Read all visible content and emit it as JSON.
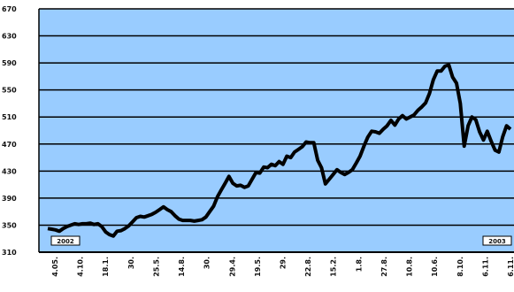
{
  "chart_data": {
    "type": "line",
    "title": "",
    "xlabel": "",
    "ylabel": "",
    "ylim": [
      310,
      670
    ],
    "yticks": [
      310,
      350,
      390,
      430,
      470,
      510,
      550,
      590,
      630,
      670
    ],
    "ytick_labels": [
      "310",
      "350",
      "390",
      "430",
      "470",
      "510",
      "550",
      "590",
      "630",
      "670"
    ],
    "xtick_labels": [
      "4.05.",
      "4.10.",
      "18.1.",
      "30.",
      "25.5.",
      "14.8.",
      "30.",
      "29.4.",
      "19.5.",
      "29.",
      "22.8.",
      "15.2.",
      "1.8.",
      "27.8.",
      "10.8.",
      "10.6.",
      "8.10.",
      "6.11.",
      "6.11."
    ],
    "grid": true,
    "legend": "none",
    "colors": {
      "plot_background": "#99ccff",
      "series": "#000000",
      "grid": "#000000"
    },
    "tags": [
      {
        "text": "2002",
        "position": "bottom-left"
      },
      {
        "text": "2003",
        "position": "bottom-right"
      }
    ],
    "series": [
      {
        "values": [
          [
            0,
            345
          ],
          [
            1,
            344
          ],
          [
            2,
            343
          ],
          [
            3,
            341
          ],
          [
            4,
            345
          ],
          [
            5,
            348
          ],
          [
            6,
            350
          ],
          [
            7,
            352
          ],
          [
            8,
            351
          ],
          [
            9,
            352
          ],
          [
            10,
            352
          ],
          [
            11,
            353
          ],
          [
            12,
            351
          ],
          [
            13,
            352
          ],
          [
            14,
            348
          ],
          [
            15,
            340
          ],
          [
            16,
            336
          ],
          [
            17,
            334
          ],
          [
            18,
            341
          ],
          [
            19,
            342
          ],
          [
            20,
            345
          ],
          [
            21,
            349
          ],
          [
            22,
            355
          ],
          [
            23,
            361
          ],
          [
            24,
            363
          ],
          [
            25,
            362
          ],
          [
            26,
            364
          ],
          [
            27,
            366
          ],
          [
            28,
            369
          ],
          [
            29,
            373
          ],
          [
            30,
            377
          ],
          [
            31,
            373
          ],
          [
            32,
            370
          ],
          [
            33,
            364
          ],
          [
            34,
            359
          ],
          [
            35,
            357
          ],
          [
            36,
            357
          ],
          [
            37,
            357
          ],
          [
            38,
            356
          ],
          [
            39,
            357
          ],
          [
            40,
            358
          ],
          [
            41,
            362
          ],
          [
            42,
            370
          ],
          [
            43,
            378
          ],
          [
            44,
            392
          ],
          [
            45,
            402
          ],
          [
            46,
            412
          ],
          [
            47,
            422
          ],
          [
            48,
            412
          ],
          [
            49,
            408
          ],
          [
            50,
            409
          ],
          [
            51,
            406
          ],
          [
            52,
            408
          ],
          [
            53,
            418
          ],
          [
            54,
            428
          ],
          [
            55,
            427
          ],
          [
            56,
            436
          ],
          [
            57,
            435
          ],
          [
            58,
            440
          ],
          [
            59,
            438
          ],
          [
            60,
            444
          ],
          [
            61,
            440
          ],
          [
            62,
            452
          ],
          [
            63,
            450
          ],
          [
            64,
            458
          ],
          [
            65,
            462
          ],
          [
            66,
            466
          ],
          [
            67,
            473
          ],
          [
            68,
            472
          ],
          [
            69,
            472
          ],
          [
            70,
            446
          ],
          [
            71,
            435
          ],
          [
            72,
            411
          ],
          [
            73,
            418
          ],
          [
            74,
            425
          ],
          [
            75,
            432
          ],
          [
            76,
            428
          ],
          [
            77,
            425
          ],
          [
            78,
            428
          ],
          [
            79,
            432
          ],
          [
            80,
            442
          ],
          [
            81,
            452
          ],
          [
            82,
            467
          ],
          [
            83,
            480
          ],
          [
            84,
            489
          ],
          [
            85,
            488
          ],
          [
            86,
            486
          ],
          [
            87,
            492
          ],
          [
            88,
            497
          ],
          [
            89,
            505
          ],
          [
            90,
            498
          ],
          [
            91,
            507
          ],
          [
            92,
            512
          ],
          [
            93,
            507
          ],
          [
            94,
            510
          ],
          [
            95,
            513
          ],
          [
            96,
            520
          ],
          [
            97,
            525
          ],
          [
            98,
            531
          ],
          [
            99,
            545
          ],
          [
            100,
            565
          ],
          [
            101,
            578
          ],
          [
            102,
            578
          ],
          [
            103,
            585
          ],
          [
            104,
            587
          ],
          [
            105,
            569
          ],
          [
            106,
            560
          ],
          [
            107,
            530
          ],
          [
            108,
            467
          ],
          [
            109,
            497
          ],
          [
            110,
            510
          ],
          [
            111,
            506
          ],
          [
            112,
            488
          ],
          [
            113,
            476
          ],
          [
            114,
            489
          ],
          [
            115,
            474
          ],
          [
            116,
            461
          ],
          [
            117,
            458
          ],
          [
            118,
            481
          ],
          [
            119,
            497
          ],
          [
            120,
            492
          ]
        ]
      }
    ]
  }
}
